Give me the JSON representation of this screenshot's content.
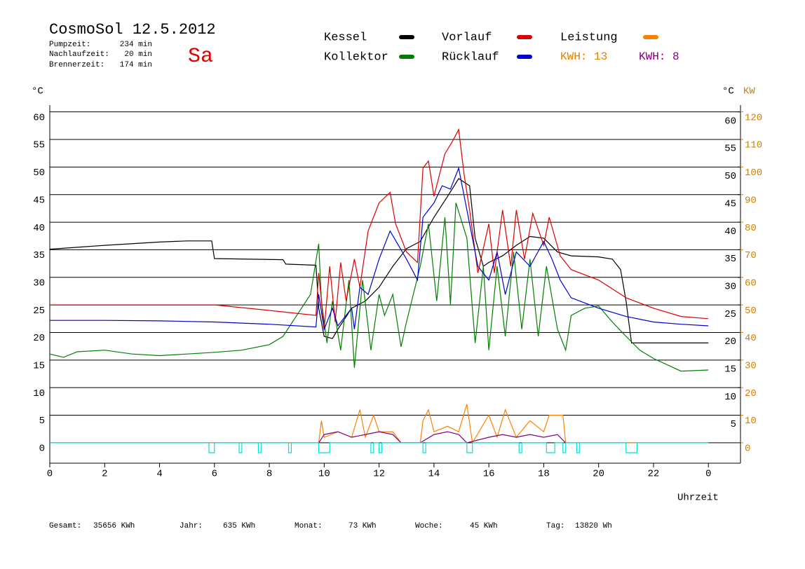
{
  "chart_data": {
    "type": "line",
    "title": "CosmoSol 12.5.2012",
    "day": "Sa",
    "stats": [
      {
        "label": "Pumpzeit:",
        "value": "234 min"
      },
      {
        "label": "Nachlaufzeit:",
        "value": "20 min"
      },
      {
        "label": "Brennerzeit:",
        "value": "174 min"
      }
    ],
    "kwh_labels": [
      "KWH: 13",
      "KWH: 8"
    ],
    "y_label": "°C",
    "y_label_right": "°C",
    "y2_label": "KW",
    "x_label": "Uhrzeit",
    "footer": [
      {
        "label": "Gesamt:",
        "value": "35656 KWh"
      },
      {
        "label": "Jahr:",
        "value": "635 KWh"
      },
      {
        "label": "Monat:",
        "value": "73 KWh"
      },
      {
        "label": "Woche:",
        "value": "45 KWh"
      },
      {
        "label": "Tag:",
        "value": "13820 Wh"
      }
    ],
    "xlim": [
      0,
      25.17
    ],
    "xticks": [
      0,
      2,
      4,
      6,
      8,
      10,
      12,
      14,
      16,
      18,
      20,
      22,
      {
        "value": 24,
        "label": "0"
      }
    ],
    "ylim": [
      -3.7,
      61.1
    ],
    "yticks": [
      0,
      5,
      10,
      15,
      20,
      25,
      30,
      35,
      40,
      45,
      50,
      55,
      60
    ],
    "yticks_right": [
      5,
      10,
      15,
      20,
      25,
      30,
      35,
      40,
      45,
      50,
      55,
      60
    ],
    "y2lim": [
      -7.4,
      122.2
    ],
    "y2ticks": [
      0,
      10,
      20,
      30,
      40,
      50,
      60,
      70,
      80,
      90,
      100,
      110,
      120
    ],
    "grid": true,
    "series": [
      {
        "name": "Kessel",
        "color": "#000000",
        "x": [
          0,
          2,
          4,
          5,
          5.9,
          6,
          8.5,
          8.6,
          9.7,
          9.8,
          10,
          10.3,
          10.5,
          11,
          11.5,
          12,
          12.5,
          13,
          13.5,
          14,
          14.5,
          14.9,
          15.3,
          15.5,
          15.8,
          16,
          16.5,
          17,
          17.5,
          18,
          18.5,
          19,
          20,
          20.5,
          20.8,
          21,
          21.2,
          24
        ],
        "values": [
          35.1,
          35.8,
          36.4,
          36.6,
          36.6,
          33.4,
          33.2,
          32.4,
          32.2,
          24.4,
          19.3,
          18.9,
          20.6,
          24.4,
          25.7,
          28.2,
          32.0,
          35.2,
          36.5,
          40.9,
          44.7,
          47.9,
          46.6,
          37.1,
          32.0,
          32.7,
          33.9,
          35.8,
          37.4,
          37.1,
          34.6,
          33.9,
          33.7,
          33.3,
          31.4,
          25.7,
          18.1,
          18.1
        ]
      },
      {
        "name": "Kollektor",
        "color": "#007f00",
        "x": [
          0,
          0.5,
          1,
          2,
          3,
          4,
          5,
          6,
          7,
          8,
          8.5,
          9,
          9.5,
          9.8,
          9.9,
          10.1,
          10.3,
          10.6,
          10.9,
          11.1,
          11.4,
          11.7,
          12,
          12.2,
          12.5,
          12.8,
          13,
          13.5,
          13.8,
          14.1,
          14.4,
          14.6,
          14.8,
          15.2,
          15.5,
          15.8,
          16,
          16.3,
          16.6,
          16.9,
          17.2,
          17.5,
          17.8,
          18.1,
          18.5,
          18.8,
          19,
          19.5,
          20,
          20.5,
          21,
          21.5,
          22,
          23,
          24
        ],
        "values": [
          16.1,
          15.5,
          16.5,
          16.8,
          16.1,
          15.8,
          16.1,
          16.4,
          16.8,
          17.8,
          19.3,
          23.1,
          26.9,
          36.1,
          25.7,
          18.1,
          25.7,
          16.8,
          29.5,
          13.6,
          29.5,
          16.8,
          26.9,
          23.1,
          26.9,
          17.4,
          21.9,
          32.0,
          39.7,
          25.7,
          40.9,
          25.1,
          43.5,
          37.1,
          18.1,
          32.0,
          16.8,
          32.0,
          19.3,
          34.6,
          20.6,
          33.3,
          19.3,
          32.0,
          20.6,
          16.8,
          23.1,
          24.4,
          24.8,
          21.9,
          19.3,
          16.8,
          15.3,
          13.0,
          13.2
        ]
      },
      {
        "name": "Vorlauf",
        "color": "#dd0000",
        "x": [
          0,
          6,
          6.2,
          8,
          9.7,
          9.8,
          10,
          10.2,
          10.4,
          10.6,
          10.8,
          11.1,
          11.3,
          11.6,
          12,
          12.4,
          12.6,
          13,
          13.4,
          13.6,
          13.8,
          14,
          14.2,
          14.4,
          14.7,
          14.9,
          15.1,
          15.3,
          15.6,
          16,
          16.2,
          16.5,
          16.8,
          17,
          17.3,
          17.6,
          18,
          18.2,
          18.6,
          19,
          20,
          21,
          22,
          23,
          24
        ],
        "values": [
          25.0,
          25.0,
          24.9,
          24.0,
          23.1,
          30.8,
          20.6,
          32.0,
          21.9,
          32.7,
          25.7,
          33.3,
          28.2,
          38.4,
          43.5,
          45.4,
          39.7,
          34.6,
          32.7,
          49.8,
          51.1,
          44.7,
          48.6,
          52.4,
          54.9,
          56.8,
          48.6,
          42.2,
          30.8,
          39.7,
          30.8,
          42.2,
          32.0,
          42.2,
          33.3,
          41.6,
          35.8,
          40.9,
          33.9,
          31.4,
          29.5,
          26.3,
          24.4,
          22.9,
          22.5
        ]
      },
      {
        "name": "Rücklauf",
        "color": "#0000d0",
        "x": [
          0,
          2,
          4,
          6,
          8,
          9.7,
          9.8,
          10,
          10.3,
          10.5,
          11,
          11.1,
          11.3,
          11.6,
          12,
          12.4,
          13,
          13.4,
          13.6,
          14,
          14.3,
          14.6,
          14.9,
          15.3,
          15.6,
          16,
          16.3,
          16.6,
          17,
          17.5,
          18,
          18.3,
          18.6,
          19,
          20,
          21,
          22,
          23,
          24
        ],
        "values": [
          22.2,
          22.2,
          22.1,
          21.9,
          21.5,
          21.0,
          26.9,
          20.6,
          24.4,
          21.2,
          24.4,
          20.6,
          28.2,
          26.9,
          33.3,
          38.4,
          33.3,
          29.5,
          40.9,
          43.5,
          46.6,
          46.0,
          49.8,
          39.7,
          32.0,
          29.5,
          34.6,
          26.9,
          34.6,
          32.0,
          36.5,
          33.3,
          29.5,
          26.3,
          24.4,
          22.9,
          21.9,
          21.5,
          21.2
        ]
      },
      {
        "name": "Leistung",
        "color": "#ff8000",
        "axis": "y2",
        "x": [
          0,
          9.8,
          9.9,
          10,
          10.5,
          11,
          11.3,
          11.5,
          11.8,
          12,
          12.5,
          12.8,
          13.5,
          13.6,
          13.8,
          14,
          14.5,
          14.9,
          15.2,
          15.4,
          16,
          16.3,
          16.6,
          17,
          17.5,
          18,
          18.2,
          18.7,
          18.8,
          24
        ],
        "values": [
          0,
          0,
          8,
          2,
          4,
          2,
          12,
          2,
          10,
          4,
          4,
          0,
          0,
          8,
          12,
          4,
          6,
          4,
          14,
          0,
          10,
          2,
          12,
          2,
          8,
          4,
          10,
          10,
          0,
          0
        ]
      },
      {
        "color": "#800080",
        "axis": "y2",
        "x": [
          9.8,
          10,
          10.5,
          11,
          11.5,
          12,
          12.5,
          12.8,
          13.5,
          14,
          14.5,
          14.9,
          15.2,
          16,
          16.5,
          17,
          17.5,
          18,
          18.5,
          18.8
        ],
        "values": [
          0,
          3,
          4,
          2,
          3,
          4,
          3,
          0,
          0,
          3,
          4,
          3,
          0,
          2,
          3,
          2,
          3,
          2,
          3,
          0
        ]
      },
      {
        "color": "#00e0e0",
        "x": [
          0,
          5.8,
          5.8,
          6.0,
          6.0,
          6.9,
          6.9,
          7.0,
          7.0,
          7.6,
          7.6,
          7.7,
          7.7,
          8.7,
          8.7,
          8.8,
          8.8,
          9.8,
          9.8,
          10.2,
          10.2,
          11.7,
          11.7,
          11.8,
          11.8,
          12.0,
          12.0,
          12.1,
          12.1,
          13.6,
          13.6,
          13.7,
          13.7,
          15.2,
          15.2,
          15.4,
          15.4,
          17.1,
          17.1,
          17.2,
          17.2,
          18.1,
          18.1,
          18.4,
          18.4,
          18.7,
          18.7,
          18.8,
          18.8,
          19.2,
          19.2,
          19.3,
          19.3,
          21.0,
          21.0,
          21.4,
          21.4,
          24
        ],
        "values": [
          0,
          0,
          -1.8,
          -1.8,
          0,
          0,
          -1.8,
          -1.8,
          0,
          0,
          -1.8,
          -1.8,
          0,
          0,
          -1.8,
          -1.8,
          0,
          0,
          -1.8,
          -1.8,
          0,
          0,
          -1.8,
          -1.8,
          0,
          0,
          -1.8,
          -1.8,
          0,
          0,
          -1.8,
          -1.8,
          0,
          0,
          -1.8,
          -1.8,
          0,
          0,
          -1.8,
          -1.8,
          0,
          0,
          -1.8,
          -1.8,
          0,
          0,
          -1.8,
          -1.8,
          0,
          0,
          -1.8,
          -1.8,
          0,
          0,
          -1.8,
          -1.8,
          0,
          0
        ]
      }
    ]
  }
}
